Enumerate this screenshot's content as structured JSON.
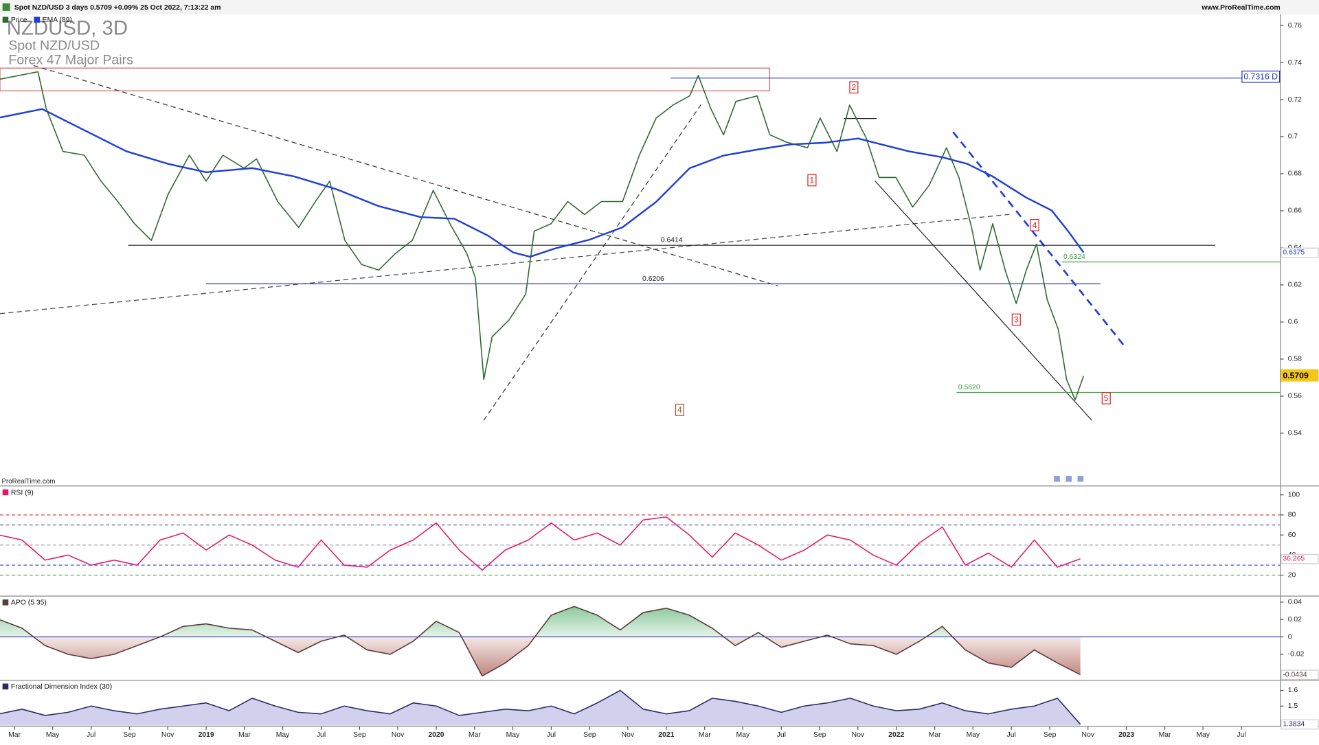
{
  "header": {
    "title": "Spot NZD/USD 3 days 0.5709 +0.09% 25 Oct 2022, 7:13:22 am",
    "site": "www.ProRealTime.com",
    "watermark": [
      "NZDUSD, 3D",
      "Spot NZD/USD",
      "Forex 47 Major Pairs"
    ],
    "footer": "ProRealTime.com"
  },
  "chart_data": [
    {
      "type": "line",
      "ylim": [
        0.512,
        0.766
      ],
      "yticks": [
        0.54,
        0.56,
        0.58,
        0.6,
        0.62,
        0.64,
        0.66,
        0.68,
        0.7,
        0.72,
        0.74,
        0.76
      ],
      "series": [
        {
          "name": "Price",
          "color": "#2e6b2e",
          "label_fill": "#f5c518",
          "x": [
            2018.104,
            2018.269,
            2018.305,
            2018.378,
            2018.47,
            2018.543,
            2018.616,
            2018.689,
            2018.762,
            2018.835,
            2018.927,
            2019,
            2019.073,
            2019.165,
            2019.219,
            2019.311,
            2019.402,
            2019.475,
            2019.537,
            2019.603,
            2019.676,
            2019.75,
            2019.823,
            2019.896,
            2019.987,
            2020.06,
            2020.133,
            2020.17,
            2020.207,
            2020.243,
            2020.316,
            2020.389,
            2020.426,
            2020.499,
            2020.572,
            2020.645,
            2020.718,
            2020.81,
            2020.883,
            2020.956,
            2021.029,
            2021.102,
            2021.139,
            2021.194,
            2021.249,
            2021.303,
            2021.395,
            2021.45,
            2021.523,
            2021.614,
            2021.669,
            2021.742,
            2021.797,
            2021.87,
            2021.925,
            2021.998,
            2022.071,
            2022.144,
            2022.218,
            2022.272,
            2022.327,
            2022.364,
            2022.419,
            2022.473,
            2022.521,
            2022.565,
            2022.609,
            2022.656,
            2022.704,
            2022.74,
            2022.777,
            2022.814
          ],
          "values": [
            0.731,
            0.735,
            0.715,
            0.692,
            0.69,
            0.676,
            0.665,
            0.653,
            0.644,
            0.669,
            0.69,
            0.676,
            0.69,
            0.683,
            0.688,
            0.665,
            0.651,
            0.665,
            0.676,
            0.644,
            0.631,
            0.628,
            0.637,
            0.644,
            0.671,
            0.653,
            0.637,
            0.624,
            0.569,
            0.592,
            0.601,
            0.615,
            0.649,
            0.653,
            0.665,
            0.658,
            0.665,
            0.665,
            0.69,
            0.71,
            0.717,
            0.722,
            0.733,
            0.715,
            0.701,
            0.719,
            0.722,
            0.701,
            0.697,
            0.694,
            0.71,
            0.692,
            0.717,
            0.699,
            0.678,
            0.678,
            0.662,
            0.674,
            0.694,
            0.678,
            0.651,
            0.628,
            0.653,
            0.628,
            0.61,
            0.628,
            0.642,
            0.612,
            0.596,
            0.569,
            0.558,
            0.5709
          ]
        },
        {
          "name": "EMA (89)",
          "color": "#1f3fd8",
          "x": [
            2018.104,
            2018.287,
            2018.47,
            2018.653,
            2018.835,
            2019,
            2019.201,
            2019.384,
            2019.567,
            2019.75,
            2019.932,
            2020.079,
            2020.225,
            2020.335,
            2020.408,
            2020.517,
            2020.664,
            2020.81,
            2020.956,
            2021.102,
            2021.249,
            2021.395,
            2021.541,
            2021.687,
            2021.834,
            2021.907,
            2022.053,
            2022.199,
            2022.309,
            2022.419,
            2022.565,
            2022.675,
            2022.748,
            2022.814
          ],
          "values": [
            0.7103,
            0.7149,
            0.7035,
            0.6921,
            0.6853,
            0.6808,
            0.683,
            0.6785,
            0.6716,
            0.6625,
            0.6566,
            0.6557,
            0.6466,
            0.6375,
            0.6352,
            0.6397,
            0.6443,
            0.6511,
            0.6648,
            0.683,
            0.6898,
            0.693,
            0.6958,
            0.6967,
            0.699,
            0.6967,
            0.6921,
            0.6889,
            0.6853,
            0.6785,
            0.6671,
            0.6602,
            0.6488,
            0.6375
          ]
        }
      ],
      "levels": [
        {
          "value": 0.7316,
          "label": "0.7316 D",
          "color": "#2233cc",
          "from": 2021.018,
          "label_pos": "end"
        },
        {
          "value": 0.6414,
          "color": "#222222",
          "from": 2018.661,
          "to": 2023.386,
          "label_pos": "center"
        },
        {
          "value": 0.6206,
          "color": "#2233cc",
          "from": 2019,
          "to": 2022.887,
          "label_pos": "center"
        },
        {
          "value": 0.6324,
          "color": "#3aa53a",
          "from": 2022.719,
          "label_pos": "start"
        },
        {
          "value": 0.562,
          "label": "0.5620",
          "color": "#3aa53a",
          "from": 2022.262,
          "label_pos": "start"
        }
      ],
      "annotations": [
        {
          "text": "1",
          "x": 2021.633,
          "y": 0.6762,
          "color": "#e02020"
        },
        {
          "text": "2",
          "x": 2021.815,
          "y": 0.7263,
          "color": "#e02020"
        },
        {
          "text": "3",
          "x": 2022.521,
          "y": 0.601,
          "color": "#e02020"
        },
        {
          "text": "4",
          "x": 2022.601,
          "y": 0.652,
          "color": "#e02020"
        },
        {
          "text": "5",
          "x": 2022.912,
          "y": 0.5586,
          "color": "#e02020"
        },
        {
          "text": "4",
          "x": 2021.058,
          "y": 0.5523,
          "color": "#a0522d"
        }
      ]
    },
    {
      "type": "line",
      "ylim": [
        0,
        108
      ],
      "yticks": [
        100,
        80,
        60,
        40,
        20
      ],
      "x": [
        2018.1,
        2018.2,
        2018.3,
        2018.4,
        2018.5,
        2018.6,
        2018.7,
        2018.8,
        2018.9,
        2019,
        2019.1,
        2019.2,
        2019.3,
        2019.4,
        2019.5,
        2019.6,
        2019.7,
        2019.8,
        2019.9,
        2020,
        2020.1,
        2020.2,
        2020.3,
        2020.4,
        2020.5,
        2020.6,
        2020.7,
        2020.8,
        2020.9,
        2021,
        2021.1,
        2021.2,
        2021.3,
        2021.4,
        2021.5,
        2021.6,
        2021.7,
        2021.8,
        2021.9,
        2022,
        2022.1,
        2022.2,
        2022.3,
        2022.4,
        2022.5,
        2022.6,
        2022.7,
        2022.8
      ],
      "series": [
        {
          "name": "RSI (9)",
          "color": "#e8176a",
          "values": [
            60,
            55,
            35,
            40,
            30,
            35,
            30,
            55,
            62,
            45,
            60,
            50,
            35,
            28,
            55,
            30,
            28,
            45,
            55,
            72,
            45,
            25,
            45,
            55,
            72,
            55,
            62,
            50,
            75,
            78,
            60,
            38,
            62,
            50,
            35,
            45,
            60,
            55,
            40,
            30,
            52,
            68,
            30,
            42,
            28,
            55,
            28,
            36.265
          ]
        }
      ],
      "levels": [
        {
          "value": 80,
          "color": "#e03030",
          "dash": true
        },
        {
          "value": 70,
          "color": "#3344cc",
          "dash": true
        },
        {
          "value": 50,
          "color": "#999999",
          "dash": true
        },
        {
          "value": 30,
          "color": "#3344cc",
          "dash": true
        },
        {
          "value": 20,
          "color": "#3aa53a",
          "dash": true
        }
      ]
    },
    {
      "type": "area",
      "ylim": [
        -0.0488,
        0.0459
      ],
      "yticks": [
        0.04,
        0.02,
        0,
        -0.02
      ],
      "x": [
        2018.1,
        2018.2,
        2018.3,
        2018.4,
        2018.5,
        2018.6,
        2018.7,
        2018.8,
        2018.9,
        2019,
        2019.1,
        2019.2,
        2019.3,
        2019.4,
        2019.5,
        2019.6,
        2019.7,
        2019.8,
        2019.9,
        2020,
        2020.1,
        2020.2,
        2020.3,
        2020.4,
        2020.5,
        2020.6,
        2020.7,
        2020.8,
        2020.9,
        2021,
        2021.1,
        2021.2,
        2021.3,
        2021.4,
        2021.5,
        2021.6,
        2021.7,
        2021.8,
        2021.9,
        2022,
        2022.1,
        2022.2,
        2022.3,
        2022.4,
        2022.5,
        2022.6,
        2022.7,
        2022.8
      ],
      "series": [
        {
          "name": "APO (5 35)",
          "color": "#5a3a3a",
          "fill_up": "#2e9e4a",
          "fill_down": "#a0443a",
          "values": [
            0.02,
            0.01,
            -0.01,
            -0.02,
            -0.025,
            -0.02,
            -0.01,
            0,
            0.012,
            0.015,
            0.01,
            0.008,
            -0.005,
            -0.018,
            -0.005,
            0.002,
            -0.015,
            -0.02,
            -0.005,
            0.018,
            0.005,
            -0.045,
            -0.03,
            -0.01,
            0.025,
            0.035,
            0.025,
            0.008,
            0.028,
            0.033,
            0.025,
            0.01,
            -0.01,
            0.005,
            -0.012,
            -0.005,
            0.002,
            -0.008,
            -0.01,
            -0.02,
            -0.005,
            0.012,
            -0.015,
            -0.03,
            -0.035,
            -0.015,
            -0.03,
            -0.0434
          ]
        }
      ],
      "levels": [
        {
          "value": 0,
          "color": "#2233cc",
          "dash": false
        }
      ]
    },
    {
      "type": "area",
      "ylim": [
        1.375,
        1.66
      ],
      "yticks": [
        1.6,
        1.5
      ],
      "x": [
        2018.1,
        2018.2,
        2018.3,
        2018.4,
        2018.5,
        2018.6,
        2018.7,
        2018.8,
        2018.9,
        2019,
        2019.1,
        2019.2,
        2019.3,
        2019.4,
        2019.5,
        2019.6,
        2019.7,
        2019.8,
        2019.9,
        2020,
        2020.1,
        2020.2,
        2020.3,
        2020.4,
        2020.5,
        2020.6,
        2020.7,
        2020.8,
        2020.9,
        2021,
        2021.1,
        2021.2,
        2021.3,
        2021.4,
        2021.5,
        2021.6,
        2021.7,
        2021.8,
        2021.9,
        2022,
        2022.1,
        2022.2,
        2022.3,
        2022.4,
        2022.5,
        2022.6,
        2022.7,
        2022.8
      ],
      "series": [
        {
          "name": "Fractional Dimension Index (30)",
          "color": "#2a2a6a",
          "fill": "#9a9ad8",
          "values": [
            1.45,
            1.48,
            1.44,
            1.46,
            1.5,
            1.47,
            1.45,
            1.48,
            1.5,
            1.52,
            1.47,
            1.55,
            1.5,
            1.46,
            1.45,
            1.5,
            1.47,
            1.45,
            1.52,
            1.5,
            1.44,
            1.46,
            1.48,
            1.47,
            1.5,
            1.45,
            1.52,
            1.6,
            1.48,
            1.45,
            1.47,
            1.55,
            1.53,
            1.5,
            1.46,
            1.5,
            1.52,
            1.55,
            1.5,
            1.47,
            1.48,
            1.52,
            1.47,
            1.45,
            1.48,
            1.5,
            1.55,
            1.3834
          ]
        }
      ],
      "xlim": [
        2018.104,
        2023.669
      ],
      "xticks": [
        {
          "value": 2018.167,
          "label": "Mar"
        },
        {
          "value": 2018.333,
          "label": "May"
        },
        {
          "value": 2018.5,
          "label": "Jul"
        },
        {
          "value": 2018.667,
          "label": "Sep"
        },
        {
          "value": 2018.833,
          "label": "Nov"
        },
        2019,
        {
          "value": 2019.167,
          "label": "Mar"
        },
        {
          "value": 2019.333,
          "label": "May"
        },
        {
          "value": 2019.5,
          "label": "Jul"
        },
        {
          "value": 2019.667,
          "label": "Sep"
        },
        {
          "value": 2019.833,
          "label": "Nov"
        },
        2020,
        {
          "value": 2020.167,
          "label": "Mar"
        },
        {
          "value": 2020.333,
          "label": "May"
        },
        {
          "value": 2020.5,
          "label": "Jul"
        },
        {
          "value": 2020.667,
          "label": "Sep"
        },
        {
          "value": 2020.833,
          "label": "Nov"
        },
        2021,
        {
          "value": 2021.167,
          "label": "Mar"
        },
        {
          "value": 2021.333,
          "label": "May"
        },
        {
          "value": 2021.5,
          "label": "Jul"
        },
        {
          "value": 2021.667,
          "label": "Sep"
        },
        {
          "value": 2021.833,
          "label": "Nov"
        },
        2022,
        {
          "value": 2022.167,
          "label": "Mar"
        },
        {
          "value": 2022.333,
          "label": "May"
        },
        {
          "value": 2022.5,
          "label": "Jul"
        },
        {
          "value": 2022.667,
          "label": "Sep"
        },
        {
          "value": 2022.833,
          "label": "Nov"
        },
        2023,
        {
          "value": 2023.167,
          "label": "Mar"
        },
        {
          "value": 2023.333,
          "label": "May"
        },
        {
          "value": 2023.5,
          "label": "Jul"
        }
      ]
    }
  ]
}
